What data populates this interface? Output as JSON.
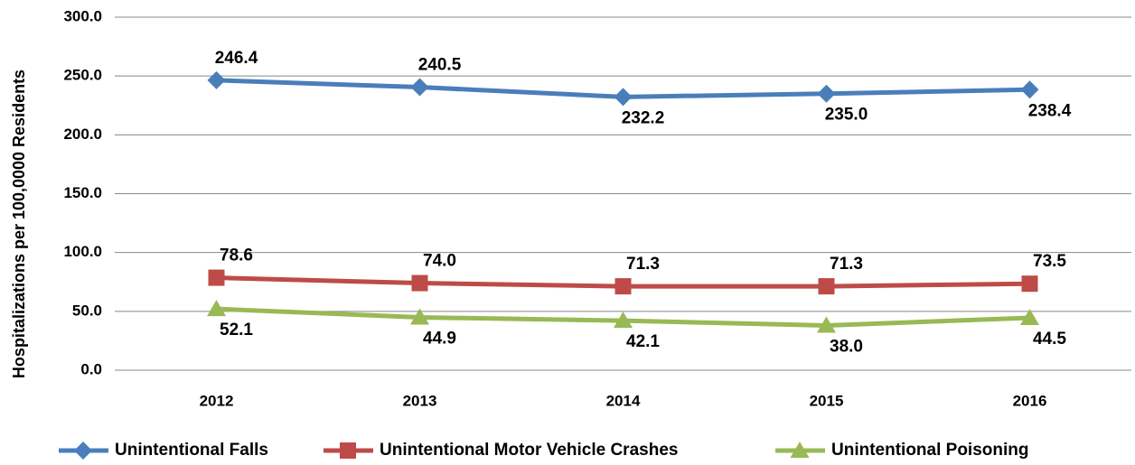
{
  "chart_data": {
    "type": "line",
    "y_label": "Hospitalizations per 100,0000 Residents",
    "categories": [
      "2012",
      "2013",
      "2014",
      "2015",
      "2016"
    ],
    "series": [
      {
        "name": "Unintentional Falls",
        "color": "#4a7ebb",
        "marker": "diamond",
        "values": [
          246.4,
          240.5,
          232.2,
          235,
          238.4
        ],
        "value_labels": [
          "246.4",
          "240.5",
          "232.2",
          "235.0",
          "238.4"
        ]
      },
      {
        "name": "Unintentional Motor Vehicle Crashes",
        "color": "#be4b48",
        "marker": "square",
        "values": [
          78.6,
          74,
          71.3,
          71.3,
          73.5
        ],
        "value_labels": [
          "78.6",
          "74.0",
          "71.3",
          "71.3",
          "73.5"
        ]
      },
      {
        "name": "Unintentional Poisoning",
        "color": "#98b954",
        "marker": "triangle",
        "values": [
          52.1,
          44.9,
          42.1,
          38,
          44.5
        ],
        "value_labels": [
          "52.1",
          "44.9",
          "42.1",
          "38.0",
          "44.5"
        ]
      }
    ],
    "ylim": [
      0,
      300
    ],
    "yticks": [
      {
        "value": 0,
        "label": "0.0"
      },
      {
        "value": 50,
        "label": "50.0"
      },
      {
        "value": 100,
        "label": "100.0"
      },
      {
        "value": 150,
        "label": "150.0"
      },
      {
        "value": 200,
        "label": "200.0"
      },
      {
        "value": 250,
        "label": "250.0"
      },
      {
        "value": 300,
        "label": "300.0"
      }
    ],
    "grid": true,
    "legend": "bottom"
  }
}
